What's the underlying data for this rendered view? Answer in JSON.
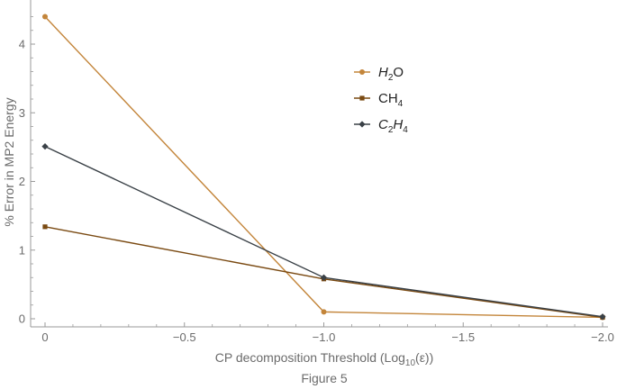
{
  "chart_data": {
    "type": "line",
    "xlabel": "CP decomposition Threshold (Log",
    "xlabel_sub": "10",
    "xlabel_tail": "(ε))",
    "ylabel": "% Error in MP2 Energy",
    "caption": "Figure 5",
    "x": [
      0,
      -1.0,
      -2.0
    ],
    "xlim": [
      0,
      -2.0
    ],
    "ylim": [
      -0.05,
      4.6
    ],
    "x_ticks": [
      0,
      -0.5,
      -1.0,
      -1.5,
      -2.0
    ],
    "x_tick_labels": [
      "0",
      "−0.5",
      "−1.0",
      "−1.5",
      "−2.0"
    ],
    "y_ticks": [
      0,
      1,
      2,
      3,
      4
    ],
    "y_tick_labels": [
      "0",
      "1",
      "2",
      "3",
      "4"
    ],
    "grid": false,
    "legend_position": "top-right",
    "series": [
      {
        "name": "H2O",
        "legend_parts": [
          {
            "text": "H",
            "style": "it"
          },
          {
            "text": "2",
            "style": "sub"
          },
          {
            "text": "O",
            "style": "plain"
          }
        ],
        "color": "#c3853a",
        "marker": "circle",
        "values": [
          4.4,
          0.1,
          0.02
        ]
      },
      {
        "name": "CH4",
        "legend_parts": [
          {
            "text": "CH",
            "style": "plain"
          },
          {
            "text": "4",
            "style": "sub"
          }
        ],
        "color": "#7a4a12",
        "marker": "square",
        "values": [
          1.34,
          0.58,
          0.02
        ]
      },
      {
        "name": "C2H4",
        "legend_parts": [
          {
            "text": "C",
            "style": "it"
          },
          {
            "text": "2",
            "style": "sub"
          },
          {
            "text": "H",
            "style": "it"
          },
          {
            "text": "4",
            "style": "sub"
          }
        ],
        "color": "#3a4147",
        "marker": "diamond",
        "values": [
          2.51,
          0.6,
          0.03
        ]
      }
    ]
  }
}
